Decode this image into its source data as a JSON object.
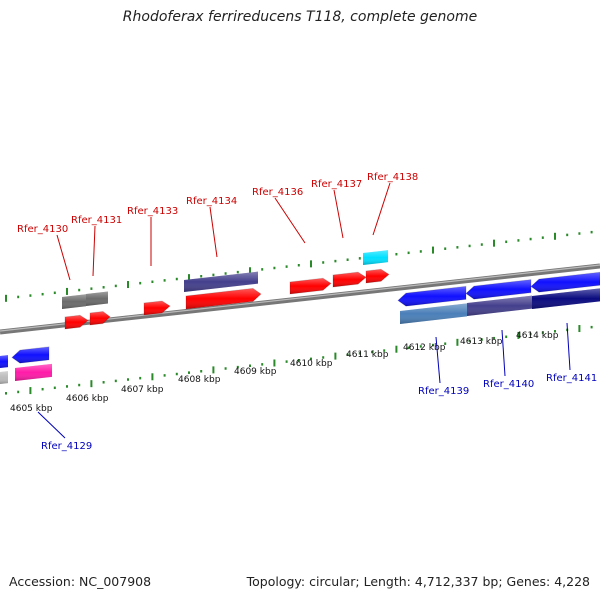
{
  "title": "Rhodoferax ferrireducens T118, complete genome",
  "footer": {
    "accession": "Accession: NC_007908",
    "summary": "Topology: circular; Length: 4,712,337 bp; Genes: 4,228"
  },
  "colors": {
    "red": "#ff0000",
    "gray": "#6b6b6b",
    "blue": "#1010ff",
    "slate": "#443f8c",
    "steel": "#4a7fb8",
    "navy": "#0a0a80",
    "cyan": "#00e0ff",
    "magenta": "#ff1aa8",
    "top_label": "#cc0000",
    "bottom_label": "#0000bb",
    "tick": "#2a8a2a"
  },
  "scale_labels": [
    "4605 kbp",
    "4606 kbp",
    "4607 kbp",
    "4608 kbp",
    "4609 kbp",
    "4610 kbp",
    "4611 kbp",
    "4612 kbp",
    "4613 kbp",
    "4614 kbp"
  ],
  "top_genes": [
    {
      "label": "Rfer_4130",
      "color": "red"
    },
    {
      "label": "Rfer_4131",
      "color": "red"
    },
    {
      "label": "Rfer_4133",
      "color": "red"
    },
    {
      "label": "Rfer_4134",
      "color": "red"
    },
    {
      "label": "Rfer_4136",
      "color": "red"
    },
    {
      "label": "Rfer_4137",
      "color": "red"
    },
    {
      "label": "Rfer_4138",
      "color": "red"
    }
  ],
  "bottom_genes": [
    {
      "label": "Rfer_4129",
      "color": "magenta"
    },
    {
      "label": "Rfer_4139",
      "color": "steel"
    },
    {
      "label": "Rfer_4140",
      "color": "slate"
    },
    {
      "label": "Rfer_4141",
      "color": "navy"
    }
  ]
}
